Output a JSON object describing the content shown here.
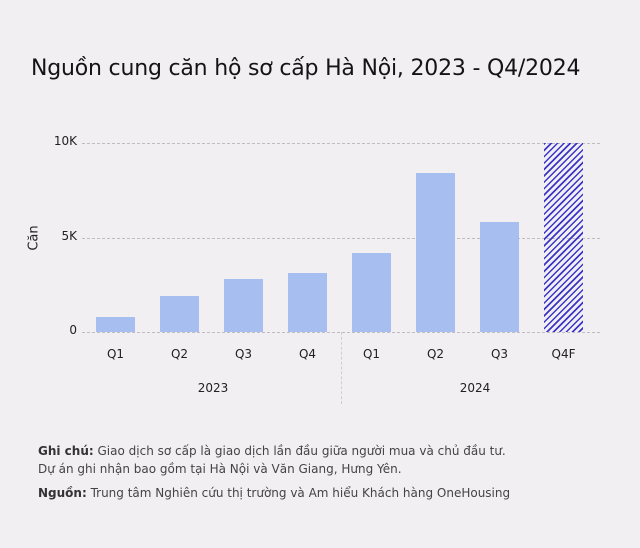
{
  "title": "Nguồn cung căn hộ sơ cấp Hà Nội, 2023 - Q4/2024",
  "colors": {
    "bar": "#a6bef0",
    "forecast_hatch": "#3b35c8",
    "background": "#f1eff2"
  },
  "chart_data": {
    "type": "bar",
    "title": "Nguồn cung căn hộ sơ cấp Hà Nội, 2023 - Q4/2024",
    "xlabel": "",
    "ylabel": "Căn",
    "ylim": [
      0,
      10000
    ],
    "yticks": [
      "0",
      "5K",
      "10K"
    ],
    "grid": true,
    "legend": null,
    "categories": [
      "Q1 2023",
      "Q2 2023",
      "Q3 2023",
      "Q4 2023",
      "Q1 2024",
      "Q2 2024",
      "Q3 2024",
      "Q4F 2024"
    ],
    "quarter_labels": [
      "Q1",
      "Q2",
      "Q3",
      "Q4",
      "Q1",
      "Q2",
      "Q3",
      "Q4F"
    ],
    "groups": [
      {
        "label": "2023",
        "span": [
          0,
          3
        ]
      },
      {
        "label": "2024",
        "span": [
          4,
          7
        ]
      }
    ],
    "values": [
      800,
      1900,
      2800,
      3100,
      4200,
      8400,
      5800,
      10000
    ],
    "forecast_index": 7,
    "annotations": [
      "Q4F is a forecast bar shown with diagonal hatching"
    ]
  },
  "notes": {
    "note_label": "Ghi chú:",
    "note_line1": " Giao dịch sơ cấp là giao dịch lần đầu giữa người mua và chủ đầu tư.",
    "note_line2": "Dự án ghi nhận bao gồm tại Hà Nội và Văn Giang, Hưng Yên.",
    "source_label": "Nguồn:",
    "source_text": " Trung tâm Nghiên cứu thị trường và Am hiểu Khách hàng OneHousing"
  }
}
